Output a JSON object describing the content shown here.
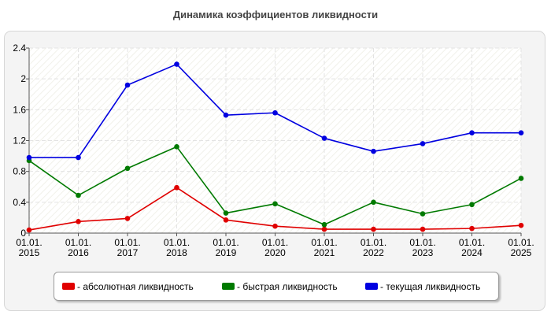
{
  "chart_title": "Динамика коэффициентов ликвидности",
  "chart_data": {
    "type": "line",
    "title": "Динамика коэффициентов ликвидности",
    "xlabel": "",
    "ylabel": "",
    "categories": [
      "01.01.\n2015",
      "01.01.\n2016",
      "01.01.\n2017",
      "01.01.\n2018",
      "01.01.\n2019",
      "01.01.\n2020",
      "01.01.\n2021",
      "01.01.\n2022",
      "01.01.\n2023",
      "01.01.\n2024",
      "01.01.\n2025"
    ],
    "ylim": [
      0,
      2.4
    ],
    "yticks": [
      0,
      0.4,
      0.8,
      1.2,
      1.6,
      2,
      2.4
    ],
    "ytick_labels": [
      "0",
      "0.4",
      "0.8",
      "1.2",
      "1.6",
      "2",
      "2.4"
    ],
    "grid": true,
    "legend_position": "bottom",
    "series": [
      {
        "name": "- абсолютная ликвидность",
        "color": "#e00000",
        "values": [
          0.04,
          0.15,
          0.19,
          0.59,
          0.17,
          0.09,
          0.05,
          0.05,
          0.05,
          0.06,
          0.1
        ]
      },
      {
        "name": "- быстрая ликвидность",
        "color": "#007a00",
        "values": [
          0.94,
          0.49,
          0.84,
          1.12,
          0.26,
          0.38,
          0.11,
          0.4,
          0.25,
          0.37,
          0.71
        ]
      },
      {
        "name": "- текущая ликвидность",
        "color": "#0000e0",
        "values": [
          0.98,
          0.98,
          1.92,
          2.19,
          1.53,
          1.56,
          1.23,
          1.06,
          1.16,
          1.3,
          1.3
        ]
      }
    ]
  }
}
